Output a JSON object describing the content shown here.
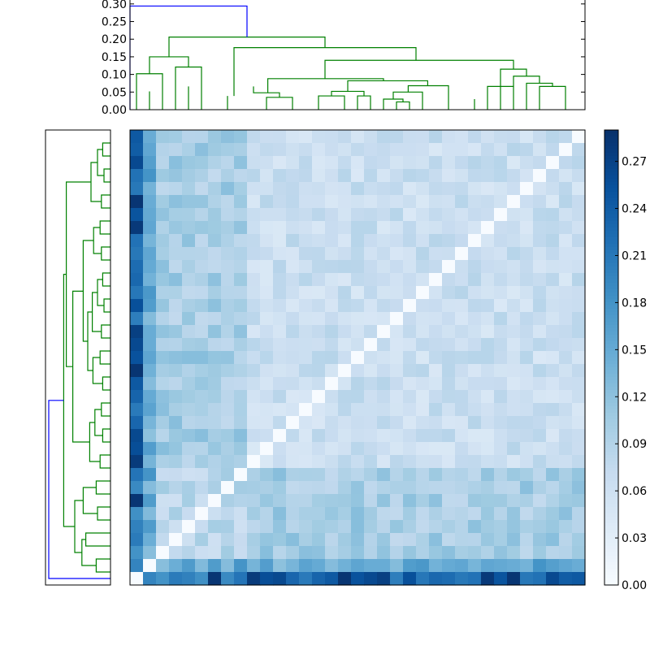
{
  "chart_data": [
    {
      "type": "dendrogram",
      "position": "top",
      "yticks": [
        "0.00",
        "0.05",
        "0.10",
        "0.15",
        "0.20",
        "0.25",
        "0.30"
      ],
      "ylim": [
        0,
        0.31
      ],
      "colors": {
        "root": "#0000ff",
        "cluster": "#008000"
      },
      "links": [
        {
          "x": [
            0.5,
            2.5
          ],
          "h": [
            0.0,
            0.102,
            0.102,
            0.0
          ],
          "color": "green"
        },
        {
          "x": [
            1.5,
            1.5
          ],
          "h": [
            0.0,
            0.052,
            0.052,
            0.0
          ],
          "color": "green"
        },
        {
          "x": [
            3.5,
            5.5
          ],
          "h": [
            0.0,
            0.121,
            0.121,
            0.0
          ],
          "color": "green"
        },
        {
          "x": [
            4.5,
            4.5
          ],
          "h": [
            0.0,
            0.066,
            0.066,
            0.0
          ],
          "color": "green"
        },
        {
          "x": [
            1.5,
            4.5
          ],
          "h": [
            0.102,
            0.15,
            0.15,
            0.121
          ],
          "color": "green"
        },
        {
          "x": [
            7.5,
            7.5
          ],
          "h": [
            0.0,
            0.039,
            0.039,
            0.0
          ],
          "color": "green"
        },
        {
          "x": [
            10.5,
            12.5
          ],
          "h": [
            0.0,
            0.035,
            0.035,
            0.0
          ],
          "color": "green"
        },
        {
          "x": [
            9.5,
            11.5
          ],
          "h": [
            0.066,
            0.048,
            0.048,
            0.035
          ],
          "color": "green"
        },
        {
          "x": [
            14.5,
            16.5
          ],
          "h": [
            0.0,
            0.039,
            0.039,
            0.0
          ],
          "color": "green"
        },
        {
          "x": [
            17.5,
            18.5
          ],
          "h": [
            0.0,
            0.039,
            0.039,
            0.0
          ],
          "color": "green"
        },
        {
          "x": [
            15.5,
            18.0
          ],
          "h": [
            0.039,
            0.052,
            0.052,
            0.039
          ],
          "color": "green"
        },
        {
          "x": [
            20.5,
            21.5
          ],
          "h": [
            0.0,
            0.022,
            0.022,
            0.0
          ],
          "color": "green"
        },
        {
          "x": [
            19.5,
            21.0
          ],
          "h": [
            0.0,
            0.03,
            0.03,
            0.022
          ],
          "color": "green"
        },
        {
          "x": [
            20.25,
            22.5
          ],
          "h": [
            0.03,
            0.05,
            0.05,
            0.0
          ],
          "color": "green"
        },
        {
          "x": [
            21.4,
            24.5
          ],
          "h": [
            0.05,
            0.068,
            0.068,
            0.0
          ],
          "color": "green"
        },
        {
          "x": [
            16.75,
            22.9
          ],
          "h": [
            0.052,
            0.082,
            0.082,
            0.068
          ],
          "color": "green"
        },
        {
          "x": [
            10.6,
            19.5
          ],
          "h": [
            0.048,
            0.088,
            0.088,
            0.082
          ],
          "color": "green"
        },
        {
          "x": [
            26.5,
            26.5
          ],
          "h": [
            0.0,
            0.03,
            0.03,
            0.0
          ],
          "color": "green"
        },
        {
          "x": [
            27.5,
            29.5
          ],
          "h": [
            0.0,
            0.066,
            0.066,
            0.0
          ],
          "color": "green"
        },
        {
          "x": [
            31.5,
            33.5
          ],
          "h": [
            0.0,
            0.066,
            0.066,
            0.0
          ],
          "color": "green"
        },
        {
          "x": [
            30.5,
            32.5
          ],
          "h": [
            0.0,
            0.075,
            0.075,
            0.066
          ],
          "color": "green"
        },
        {
          "x": [
            29.5,
            31.5
          ],
          "h": [
            0.066,
            0.095,
            0.095,
            0.075
          ],
          "color": "green"
        },
        {
          "x": [
            28.5,
            30.5
          ],
          "h": [
            0.0,
            0.115,
            0.115,
            0.095
          ],
          "color": "green"
        },
        {
          "x": [
            15.0,
            29.5
          ],
          "h": [
            0.088,
            0.14,
            0.14,
            0.115
          ],
          "color": "green"
        },
        {
          "x": [
            8.0,
            22.0
          ],
          "h": [
            0.039,
            0.176,
            0.176,
            0.14
          ],
          "color": "green"
        },
        {
          "x": [
            3.0,
            15.0
          ],
          "h": [
            0.15,
            0.206,
            0.206,
            0.176
          ],
          "color": "green"
        },
        {
          "x": [
            0.0,
            9.0
          ],
          "h": [
            0.0,
            0.294,
            0.294,
            0.206
          ],
          "color": "blue"
        }
      ]
    },
    {
      "type": "dendrogram",
      "position": "left",
      "colors": {
        "root": "#0000ff",
        "cluster": "#008000"
      }
    },
    {
      "type": "heatmap",
      "rows": 35,
      "cols": 35,
      "colormap": "Blues",
      "vmin": 0.0,
      "vmax": 0.29,
      "colorbar_ticks": [
        "0.00",
        "0.03",
        "0.06",
        "0.09",
        "0.12",
        "0.15",
        "0.18",
        "0.21",
        "0.24",
        "0.27"
      ],
      "row_col_zero": 0.21,
      "row_col_one": 0.15,
      "block_value": 0.085,
      "background_value": 0.065,
      "diagonal_value": 0.0
    }
  ]
}
